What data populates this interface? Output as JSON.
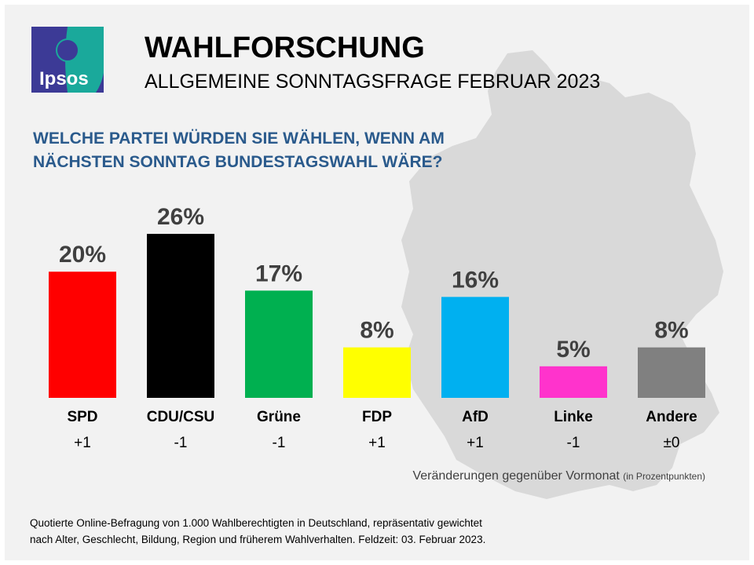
{
  "header": {
    "logo_text": "Ipsos",
    "title": "WAHLFORSCHUNG",
    "subtitle": "ALLGEMEINE SONNTAGSFRAGE FEBRUAR 2023"
  },
  "question": "WELCHE PARTEI WÜRDEN SIE WÄHLEN, WENN AM NÄCHSTEN SONNTAG BUNDESTAGSWAHL WÄRE?",
  "chart_data": {
    "type": "bar",
    "categories": [
      "SPD",
      "CDU/CSU",
      "Grüne",
      "FDP",
      "AfD",
      "Linke",
      "Andere"
    ],
    "values": [
      20,
      26,
      17,
      8,
      16,
      5,
      8
    ],
    "value_labels": [
      "20%",
      "26%",
      "17%",
      "8%",
      "16%",
      "5%",
      "8%"
    ],
    "changes": [
      "+1",
      "-1",
      "-1",
      "+1",
      "+1",
      "-1",
      "±0"
    ],
    "colors": [
      "#ff0000",
      "#000000",
      "#00b050",
      "#ffff00",
      "#00b0f0",
      "#ff33cc",
      "#808080"
    ],
    "ylim": [
      0,
      26
    ],
    "grid": false
  },
  "changes_note": "Veränderungen gegenüber Vormonat",
  "changes_note_unit": "(in Prozentpunkten)",
  "footnote_line1": "Quotierte Online-Befragung  von 1.000 Wahlberechtigten  in Deutschland, repräsentativ gewichtet",
  "footnote_line2": "nach Alter, Geschlecht, Bildung, Region und früherem Wahlverhalten.  Feldzeit: 03. Februar 2023."
}
